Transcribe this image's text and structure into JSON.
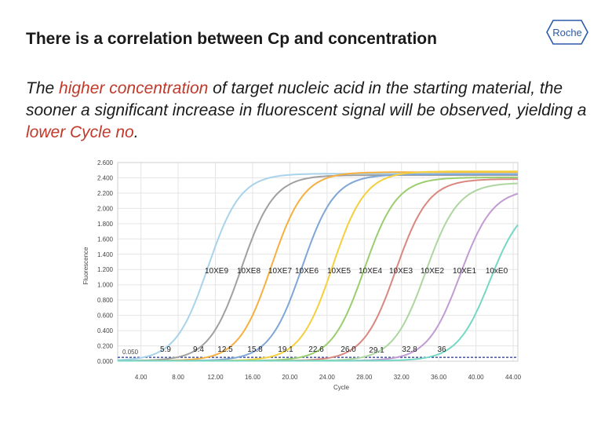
{
  "slide": {
    "title": "There is a correlation between Cp and concentration",
    "logo_text": "Roche",
    "para": {
      "p1": "The ",
      "p2": "higher concentration",
      "p3": " of target nucleic acid in the starting material, the sooner a significant increase in fluorescent signal will be observed, yielding a ",
      "p4": "lower Cycle no",
      "p5": "."
    }
  },
  "colors": {
    "accent_red": "#c0392b",
    "threshold": "#1f2f8f",
    "grid": "#e5e5e5"
  },
  "chart_data": {
    "type": "line",
    "xlabel": "Cycle",
    "ylabel": "Fluorescence",
    "xlim": [
      1.5,
      44.5
    ],
    "ylim": [
      0,
      2.6
    ],
    "grid": true,
    "x_ticks": [
      "4.00",
      "8.00",
      "12.00",
      "16.00",
      "20.00",
      "24.00",
      "28.00",
      "32.00",
      "36.00",
      "40.00",
      "44.00"
    ],
    "y_ticks": [
      "0.000",
      "0.200",
      "0.400",
      "0.600",
      "0.800",
      "1.000",
      "1.200",
      "1.400",
      "1.600",
      "1.800",
      "2.000",
      "2.200",
      "2.400",
      "2.600"
    ],
    "threshold": {
      "value": 0.05,
      "label": "0.050"
    },
    "series": [
      {
        "name": "10XE9",
        "cp": "5.9",
        "midpoint": 11.2,
        "plateau": 2.45,
        "color": "#a9d3ea"
      },
      {
        "name": "10XE8",
        "cp": "9.4",
        "midpoint": 14.8,
        "plateau": 2.43,
        "color": "#a0a0a0"
      },
      {
        "name": "10XE7",
        "cp": "12.5",
        "midpoint": 18.0,
        "plateau": 2.47,
        "color": "#f5b041"
      },
      {
        "name": "10XE6",
        "cp": "15.8",
        "midpoint": 21.3,
        "plateau": 2.44,
        "color": "#7fa6d6"
      },
      {
        "name": "10XE5",
        "cp": "19.1",
        "midpoint": 24.6,
        "plateau": 2.48,
        "color": "#f4d03f"
      },
      {
        "name": "10XE4",
        "cp": "22.6",
        "midpoint": 28.0,
        "plateau": 2.4,
        "color": "#9acd6e"
      },
      {
        "name": "10XE3",
        "cp": "26.0",
        "midpoint": 31.4,
        "plateau": 2.38,
        "color": "#d98880"
      },
      {
        "name": "10XE2",
        "cp": "29.1",
        "midpoint": 34.6,
        "plateau": 2.33,
        "color": "#aed6a0"
      },
      {
        "name": "10XE1",
        "cp": "32.8",
        "midpoint": 38.3,
        "plateau": 2.25,
        "color": "#c39bd3"
      },
      {
        "name": "10xE0",
        "cp": "36",
        "midpoint": 41.5,
        "plateau": 2.1,
        "color": "#76d7c4"
      }
    ]
  }
}
